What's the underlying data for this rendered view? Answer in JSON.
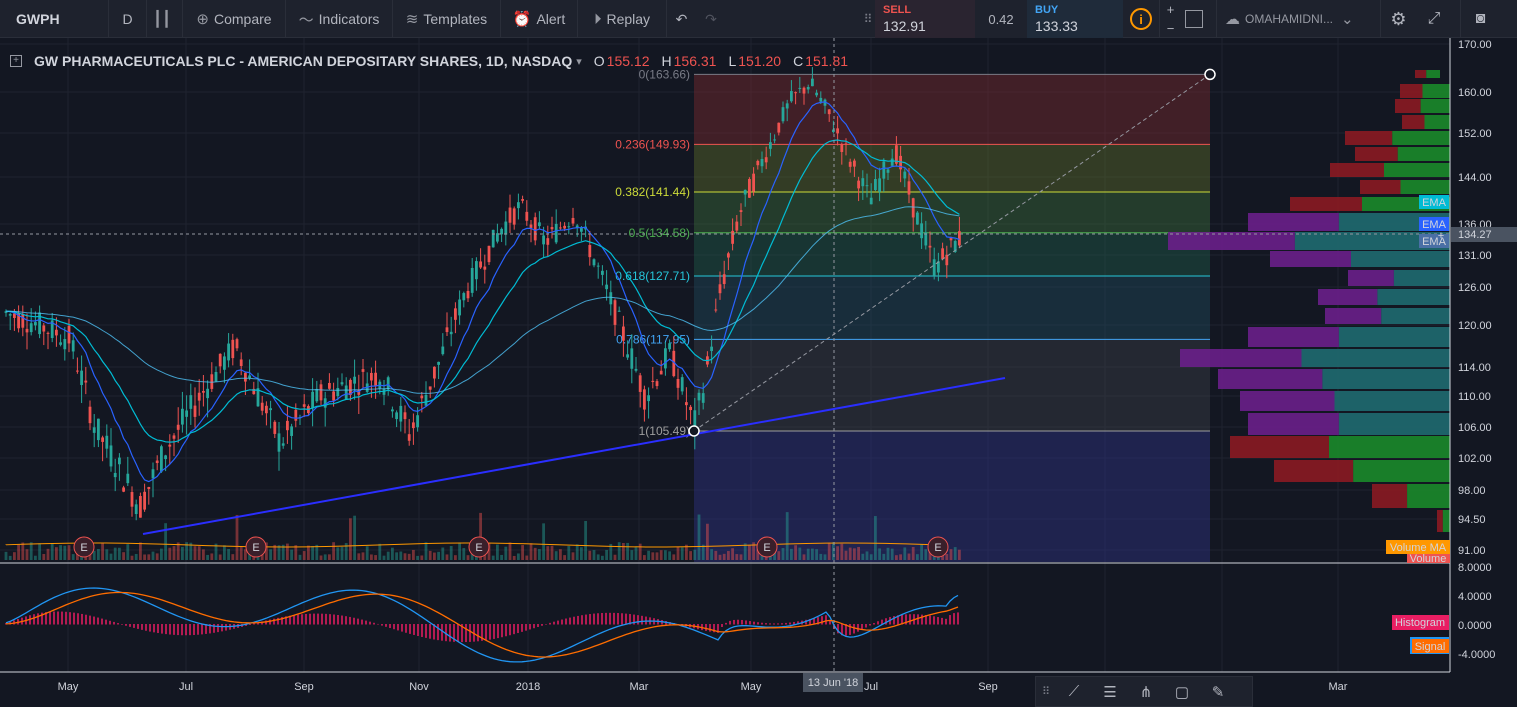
{
  "toolbar": {
    "symbol": "GWPH",
    "interval": "D",
    "compare": "Compare",
    "indicators": "Indicators",
    "templates": "Templates",
    "alert": "Alert",
    "replay": "Replay",
    "sell_label": "SELL",
    "sell_price": "132.91",
    "spread": "0.42",
    "buy_label": "BUY",
    "buy_price": "133.33",
    "qty_plus": "+",
    "qty_minus": "−",
    "account": "OMAHAMIDNI..."
  },
  "legend": {
    "title": "GW PHARMACEUTICALS PLC - AMERICAN DEPOSITARY SHARES, 1D, NASDAQ",
    "o_label": "O",
    "o": "155.12",
    "h_label": "H",
    "h": "156.31",
    "l_label": "L",
    "l": "151.20",
    "c_label": "C",
    "c": "151.81"
  },
  "fib": {
    "levels": [
      {
        "ratio": "0",
        "price": 163.66,
        "text": "0(163.66)",
        "color": "#787b86"
      },
      {
        "ratio": "0.236",
        "price": 149.93,
        "text": "0.236(149.93)",
        "color": "#ef5350"
      },
      {
        "ratio": "0.382",
        "price": 141.44,
        "text": "0.382(141.44)",
        "color": "#cddc39"
      },
      {
        "ratio": "0.5",
        "price": 134.58,
        "text": "0.5(134.58)",
        "color": "#4caf50"
      },
      {
        "ratio": "0.618",
        "price": 127.71,
        "text": "0.618(127.71)",
        "color": "#26c6da"
      },
      {
        "ratio": "0.786",
        "price": 117.95,
        "text": "0.786(117.95)",
        "color": "#42a5f5"
      },
      {
        "ratio": "1",
        "price": 105.49,
        "text": "1(105.49)",
        "color": "#9e9e9e"
      }
    ]
  },
  "price_axis": {
    "ticks": [
      "170.00",
      "160.00",
      "152.00",
      "144.00",
      "136.00",
      "131.00",
      "126.00",
      "120.00",
      "114.00",
      "110.00",
      "106.00",
      "102.00",
      "98.00",
      "94.50",
      "91.00"
    ],
    "current": "134.27",
    "ema_labels": [
      "EMA",
      "EMA",
      "EMA"
    ],
    "volume_ma_label": "Volume MA",
    "volume_label": "Volume"
  },
  "macd_axis": {
    "ticks": [
      "8.0000",
      "4.0000",
      "0.0000",
      "-4.0000"
    ],
    "histogram_label": "Histogram",
    "signal_label": "Signal"
  },
  "time_axis": {
    "ticks": [
      "May",
      "Jul",
      "Sep",
      "Nov",
      "2018",
      "Mar",
      "May",
      "Jul",
      "Sep",
      "Mar"
    ],
    "crosshair": "13 Jun '18"
  },
  "earnings_marker": "E",
  "colors": {
    "up": "#26a69a",
    "down": "#ef5350",
    "background": "#131722",
    "ema_fast": "#2962ff",
    "ema_mid": "#00bcd4",
    "ema_slow": "#4fc3f7",
    "trendline": "#2a2eff"
  }
}
